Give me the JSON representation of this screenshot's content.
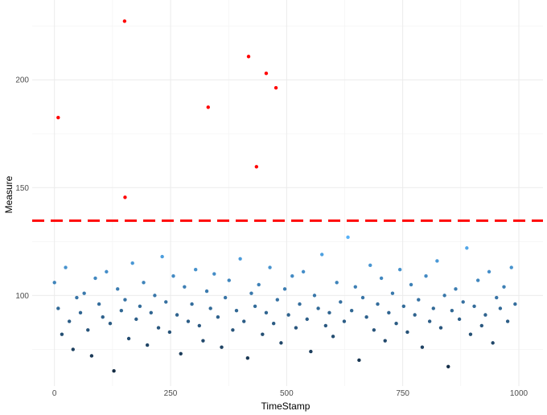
{
  "chart_data": {
    "type": "scatter",
    "title": "",
    "xlabel": "TimeStamp",
    "ylabel": "Measure",
    "xlim": [
      -48,
      1052
    ],
    "ylim": [
      58,
      237
    ],
    "x_ticks": [
      "0",
      "250",
      "500",
      "750",
      "1000"
    ],
    "y_ticks": [
      "100",
      "150",
      "200"
    ],
    "grid": true,
    "color_scale": {
      "low": "#132B43",
      "high": "#56B1F7",
      "outlier": "#FF0000"
    },
    "threshold": {
      "value": 134.7,
      "style": "dashed",
      "color": "#FF0000"
    },
    "points": {
      "x": [
        0,
        8,
        16,
        24,
        32,
        40,
        48,
        56,
        64,
        72,
        80,
        88,
        96,
        104,
        112,
        120,
        128,
        136,
        144,
        152,
        160,
        168,
        176,
        184,
        192,
        200,
        208,
        216,
        224,
        232,
        240,
        248,
        256,
        264,
        272,
        280,
        288,
        296,
        304,
        312,
        320,
        328,
        336,
        344,
        352,
        360,
        368,
        376,
        384,
        392,
        400,
        408,
        416,
        424,
        432,
        440,
        448,
        456,
        464,
        472,
        480,
        488,
        496,
        504,
        512,
        520,
        528,
        536,
        544,
        552,
        560,
        568,
        576,
        584,
        592,
        600,
        608,
        616,
        624,
        632,
        640,
        648,
        656,
        664,
        672,
        680,
        688,
        696,
        704,
        712,
        720,
        728,
        736,
        744,
        752,
        760,
        768,
        776,
        784,
        792,
        800,
        808,
        816,
        824,
        832,
        840,
        848,
        856,
        864,
        872,
        880,
        888,
        896,
        904,
        912,
        920,
        928,
        936,
        944,
        952,
        960,
        968,
        976,
        984,
        992
      ],
      "y": [
        106,
        94,
        82,
        113,
        88,
        75,
        99,
        92,
        101,
        84,
        72,
        108,
        96,
        90,
        111,
        87,
        65,
        103,
        93,
        98,
        80,
        115,
        89,
        95,
        106,
        77,
        92,
        100,
        85,
        118,
        97,
        83,
        109,
        91,
        73,
        104,
        88,
        96,
        112,
        86,
        79,
        102,
        94,
        110,
        90,
        76,
        99,
        107,
        84,
        93,
        117,
        88,
        71,
        101,
        95,
        105,
        82,
        92,
        113,
        87,
        98,
        78,
        103,
        91,
        109,
        85,
        96,
        111,
        89,
        74,
        100,
        94,
        119,
        86,
        92,
        81,
        106,
        97,
        88,
        127,
        93,
        104,
        70,
        99,
        90,
        114,
        84,
        96,
        108,
        79,
        92,
        101,
        87,
        112,
        95,
        83,
        105,
        91,
        98,
        76,
        109,
        88,
        94,
        116,
        85,
        100,
        67,
        93,
        103,
        89,
        97,
        122,
        82,
        95,
        107,
        86,
        91,
        111,
        78,
        99,
        94,
        104,
        88,
        113,
        96
      ]
    },
    "outliers": {
      "x": [
        8,
        151,
        152,
        331,
        418,
        435,
        456,
        477
      ],
      "y": [
        182.5,
        227.2,
        145.5,
        187.3,
        210.8,
        159.7,
        203,
        196.3
      ]
    }
  }
}
